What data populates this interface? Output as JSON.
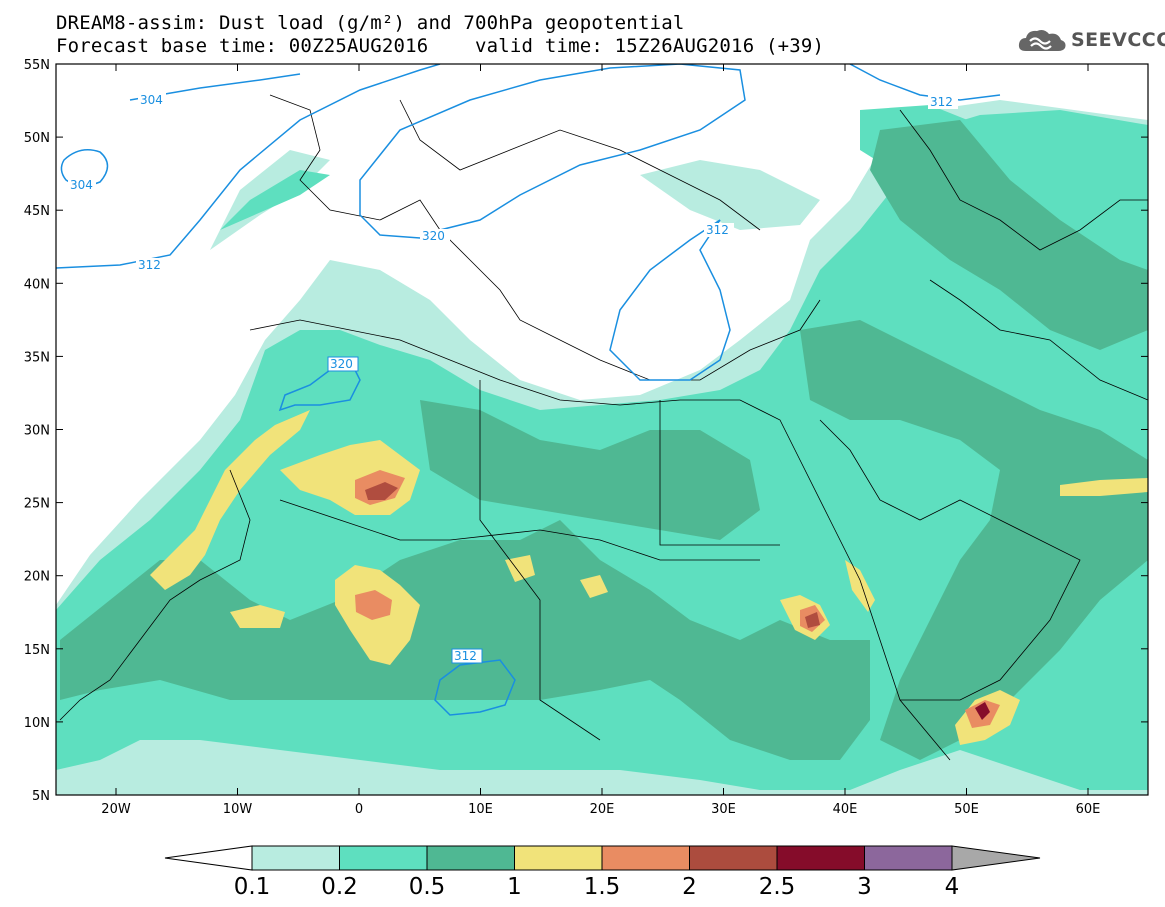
{
  "header": {
    "title_line1": "DREAM8-assim: Dust load (g/m²) and 700hPa geopotential",
    "title_line2": "Forecast base time: 00Z25AUG2016    valid time: 15Z26AUG2016 (+39)"
  },
  "logo": {
    "text": "SEEVCCC",
    "icon": "cloud-icon"
  },
  "map": {
    "lat_labels": [
      "55N",
      "50N",
      "45N",
      "40N",
      "35N",
      "30N",
      "25N",
      "20N",
      "15N",
      "10N",
      "5N"
    ],
    "lon_labels": [
      "20W",
      "10W",
      "0",
      "10E",
      "20E",
      "30E",
      "40E",
      "50E",
      "60E"
    ],
    "contour_labels": [
      "304",
      "304",
      "312",
      "320",
      "312",
      "320",
      "312",
      "312"
    ],
    "colors": {
      "contour": "#1a8fe0",
      "dust_very_light": "#b8ece0",
      "dust_light": "#5edfbf",
      "dust_medium": "#4fb893",
      "dust_yellow": "#f1e37a",
      "dust_orange": "#e98c62",
      "dust_red": "#b04d3f"
    }
  },
  "colorbar": {
    "labels": [
      "0.1",
      "0.2",
      "0.5",
      "1",
      "1.5",
      "2",
      "2.5",
      "3",
      "4"
    ],
    "colors": [
      "#b8ece0",
      "#5edfbf",
      "#4fb893",
      "#f1e37a",
      "#e98c62",
      "#ac4c3e",
      "#850c2a",
      "#8c679c",
      "#a8a8a8"
    ]
  }
}
